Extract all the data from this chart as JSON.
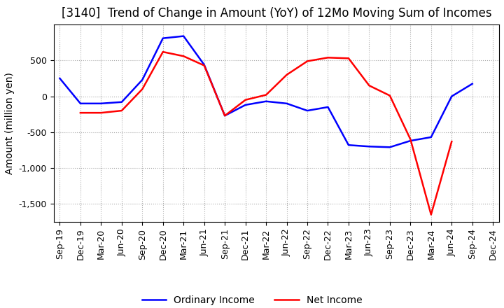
{
  "title": "[3140]  Trend of Change in Amount (YoY) of 12Mo Moving Sum of Incomes",
  "ylabel": "Amount (million yen)",
  "x_labels": [
    "Sep-19",
    "Dec-19",
    "Mar-20",
    "Jun-20",
    "Sep-20",
    "Dec-20",
    "Mar-21",
    "Jun-21",
    "Sep-21",
    "Dec-21",
    "Mar-22",
    "Jun-22",
    "Sep-22",
    "Dec-22",
    "Mar-23",
    "Jun-23",
    "Sep-23",
    "Dec-23",
    "Mar-24",
    "Jun-24",
    "Sep-24",
    "Dec-24"
  ],
  "ordinary_income": [
    250,
    -100,
    -100,
    -80,
    230,
    810,
    840,
    440,
    -270,
    -120,
    -70,
    -100,
    -200,
    -150,
    -680,
    -700,
    -710,
    -620,
    -570,
    0,
    175,
    null
  ],
  "net_income": [
    null,
    -230,
    -230,
    -200,
    100,
    620,
    560,
    430,
    -270,
    -50,
    20,
    300,
    490,
    540,
    530,
    150,
    10,
    -600,
    -1650,
    -630,
    null,
    null
  ],
  "ordinary_color": "#0000ff",
  "net_color": "#ff0000",
  "ylim": [
    -1750,
    1000
  ],
  "yticks": [
    500,
    0,
    -500,
    -1000,
    -1500
  ],
  "grid_color": "#aaaaaa",
  "background_color": "#ffffff",
  "title_fontsize": 12,
  "axis_fontsize": 10,
  "tick_fontsize": 9,
  "legend_labels": [
    "Ordinary Income",
    "Net Income"
  ]
}
